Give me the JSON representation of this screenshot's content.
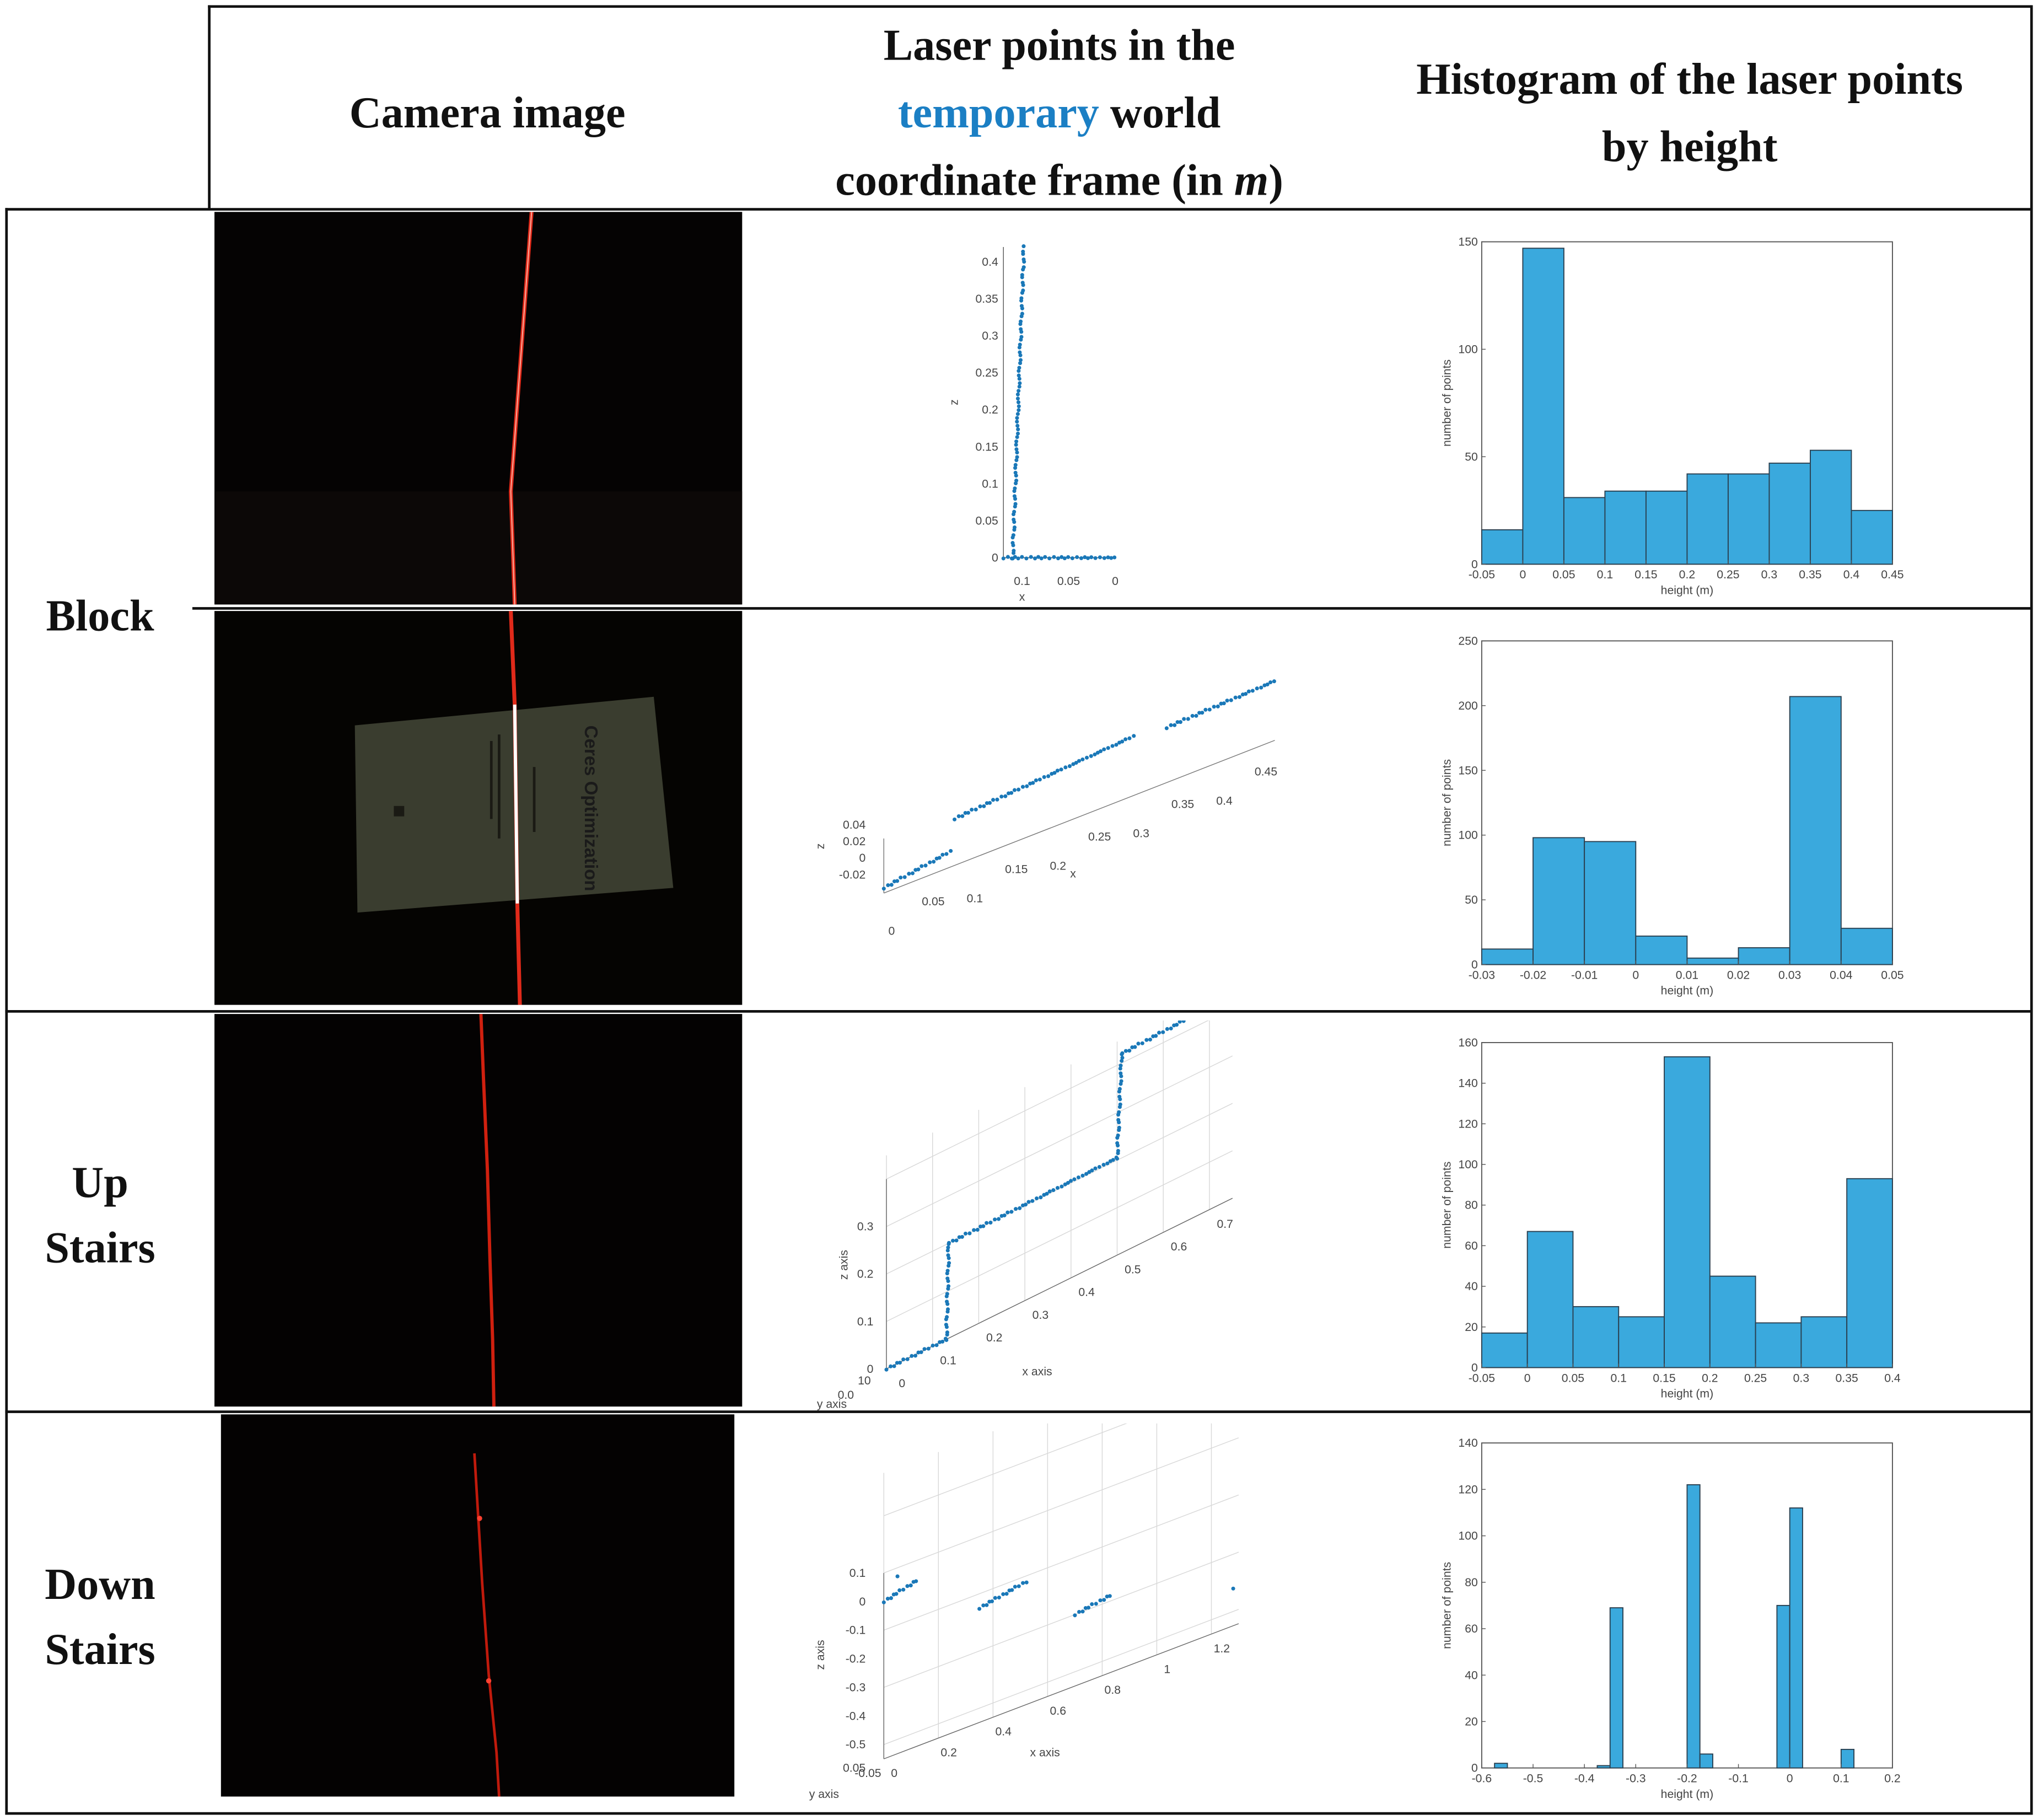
{
  "header": {
    "col1": "Camera image",
    "col2_line1": "Laser points in the",
    "col2_accent": "temporary",
    "col2_after_accent": "world",
    "col2_line3_pre": "coordinate frame (in ",
    "col2_line3_italic": "m",
    "col2_line3_post": ")",
    "col3_line1": "Histogram of the laser points",
    "col3_line2": "by height"
  },
  "rows": [
    {
      "label_lines": [
        "Block"
      ]
    },
    {
      "label_lines": [
        "Up",
        "Stairs"
      ]
    },
    {
      "label_lines": [
        "Down",
        "Stairs"
      ]
    }
  ],
  "camera": {
    "row2_document_title": "Ceres Optimization"
  },
  "colors": {
    "accent": "#1b7fc4",
    "bar_fill": "#3aa9dd",
    "bar_edge": "#2a3f4f",
    "scatter": "#1a78b8",
    "laser": "#e02a1a"
  },
  "chart_data": [
    {
      "type": "scatter",
      "panel": "block-1",
      "x_tick_labels": [
        "0.1",
        "0.05",
        "0"
      ],
      "z_tick_labels": [
        "0",
        "0.05",
        "0.1",
        "0.15",
        "0.2",
        "0.25",
        "0.3",
        "0.35",
        "0.4"
      ],
      "xlabel": "x",
      "zlabel": "z",
      "segments": [
        {
          "x": [
            0.12,
            0.0
          ],
          "z": [
            0.0,
            0.0
          ]
        },
        {
          "x": [
            0.12,
            0.1
          ],
          "z": [
            0.0,
            0.42
          ]
        }
      ],
      "xlim": [
        0.12,
        0.0
      ],
      "zlim": [
        0,
        0.42
      ]
    },
    {
      "type": "histogram",
      "panel": "block-1",
      "xlabel": "height (m)",
      "ylabel": "number of points",
      "x_ticks": [
        "-0.05",
        "0",
        "0.05",
        "0.1",
        "0.15",
        "0.2",
        "0.25",
        "0.3",
        "0.35",
        "0.4",
        "0.45"
      ],
      "y_ticks": [
        "0",
        "50",
        "100",
        "150"
      ],
      "xlim": [
        -0.05,
        0.45
      ],
      "ylim": [
        0,
        150
      ],
      "bin_start": -0.05,
      "bin_width": 0.05,
      "values": [
        16,
        147,
        31,
        34,
        34,
        42,
        42,
        47,
        53,
        25
      ]
    },
    {
      "type": "scatter",
      "panel": "block-2",
      "x_tick_labels": [
        "0",
        "0.05",
        "0.1",
        "0.15",
        "0.2",
        "0.25",
        "0.3",
        "0.35",
        "0.4",
        "0.45"
      ],
      "z_tick_labels": [
        "-0.02",
        "0",
        "0.02",
        "0.04"
      ],
      "xlabel": "x",
      "zlabel": "z",
      "segments": [
        {
          "x": [
            0.0,
            0.08
          ],
          "z": [
            -0.02,
            -0.015
          ]
        },
        {
          "x": [
            0.08,
            0.3
          ],
          "z": [
            0.035,
            0.04
          ]
        },
        {
          "x": [
            0.34,
            0.47
          ],
          "z": [
            0.035,
            0.04
          ]
        }
      ]
    },
    {
      "type": "histogram",
      "panel": "block-2",
      "xlabel": "height (m)",
      "ylabel": "number of points",
      "x_ticks": [
        "-0.03",
        "-0.02",
        "-0.01",
        "0",
        "0.01",
        "0.02",
        "0.03",
        "0.04",
        "0.05"
      ],
      "y_ticks": [
        "0",
        "50",
        "100",
        "150",
        "200",
        "250"
      ],
      "xlim": [
        -0.03,
        0.05
      ],
      "ylim": [
        0,
        250
      ],
      "bin_start": -0.03,
      "bin_width": 0.01,
      "values": [
        12,
        98,
        95,
        22,
        5,
        13,
        207,
        28
      ]
    },
    {
      "type": "scatter",
      "panel": "up-stairs",
      "x_tick_labels": [
        "0",
        "0.1",
        "0.2",
        "0.3",
        "0.4",
        "0.5",
        "0.6",
        "0.7"
      ],
      "z_tick_labels": [
        "0",
        "0.1",
        "0.2",
        "0.3"
      ],
      "xlabel": "x axis",
      "ylabel": "y axis",
      "zlabel": "z axis",
      "corner_labels": [
        "0.0",
        "10"
      ],
      "segments": [
        {
          "x": [
            0.0,
            0.12
          ],
          "z": [
            0.0,
            0.0
          ]
        },
        {
          "x": [
            0.12,
            0.13
          ],
          "z": [
            0.0,
            0.2
          ]
        },
        {
          "x": [
            0.13,
            0.5
          ],
          "z": [
            0.2,
            0.22
          ]
        },
        {
          "x": [
            0.5,
            0.51
          ],
          "z": [
            0.22,
            0.42
          ]
        },
        {
          "x": [
            0.51,
            0.78
          ],
          "z": [
            0.42,
            0.44
          ]
        }
      ]
    },
    {
      "type": "histogram",
      "panel": "up-stairs",
      "xlabel": "height (m)",
      "ylabel": "number of points",
      "x_ticks": [
        "-0.05",
        "0",
        "0.05",
        "0.1",
        "0.15",
        "0.2",
        "0.25",
        "0.3",
        "0.35",
        "0.4"
      ],
      "y_ticks": [
        "0",
        "20",
        "40",
        "60",
        "80",
        "100",
        "120",
        "140",
        "160"
      ],
      "xlim": [
        -0.05,
        0.4
      ],
      "ylim": [
        0,
        160
      ],
      "bin_start": -0.05,
      "bin_width": 0.05,
      "values": [
        17,
        67,
        30,
        25,
        153,
        45,
        22,
        25,
        93
      ]
    },
    {
      "type": "scatter",
      "panel": "down-stairs",
      "x_tick_labels": [
        "0",
        "0.2",
        "0.4",
        "0.6",
        "0.8",
        "1",
        "1.2"
      ],
      "z_tick_labels": [
        "-0.5",
        "-0.4",
        "-0.3",
        "-0.2",
        "-0.1",
        "0",
        "0.1"
      ],
      "xlabel": "x axis",
      "ylabel": "y axis",
      "zlabel": "z axis",
      "corner_labels": [
        "-0.05",
        "0.05"
      ],
      "segments": [
        {
          "x": [
            0.0,
            0.12
          ],
          "z": [
            0.0,
            0.02
          ]
        },
        {
          "x": [
            0.35,
            0.52
          ],
          "z": [
            -0.15,
            -0.12
          ]
        },
        {
          "x": [
            0.7,
            0.83
          ],
          "z": [
            -0.3,
            -0.28
          ]
        }
      ]
    },
    {
      "type": "histogram",
      "panel": "down-stairs",
      "xlabel": "height (m)",
      "ylabel": "number of points",
      "x_ticks": [
        "-0.6",
        "-0.5",
        "-0.4",
        "-0.3",
        "-0.2",
        "-0.1",
        "0",
        "0.1",
        "0.2"
      ],
      "y_ticks": [
        "0",
        "20",
        "40",
        "60",
        "80",
        "100",
        "120",
        "140"
      ],
      "xlim": [
        -0.6,
        0.2
      ],
      "ylim": [
        0,
        140
      ],
      "bars": [
        {
          "x0": -0.575,
          "x1": -0.55,
          "v": 2
        },
        {
          "x0": -0.375,
          "x1": -0.35,
          "v": 1
        },
        {
          "x0": -0.35,
          "x1": -0.325,
          "v": 69
        },
        {
          "x0": -0.2,
          "x1": -0.175,
          "v": 122
        },
        {
          "x0": -0.175,
          "x1": -0.15,
          "v": 6
        },
        {
          "x0": -0.025,
          "x1": 0.0,
          "v": 70
        },
        {
          "x0": 0.0,
          "x1": 0.025,
          "v": 112
        },
        {
          "x0": 0.1,
          "x1": 0.125,
          "v": 8
        }
      ]
    }
  ]
}
